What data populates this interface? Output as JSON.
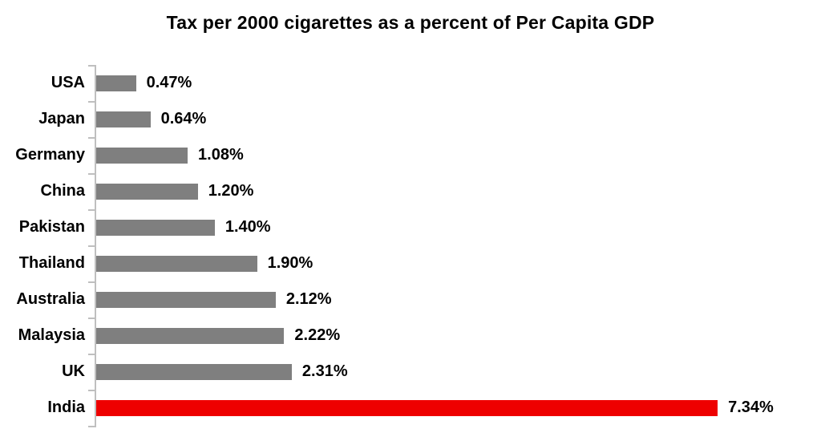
{
  "title": "Tax per 2000 cigarettes as a percent of Per Capita GDP",
  "chart_data": {
    "type": "bar",
    "orientation": "horizontal",
    "title": "Tax per 2000 cigarettes as a percent of Per Capita GDP",
    "categories": [
      "USA",
      "Japan",
      "Germany",
      "China",
      "Pakistan",
      "Thailand",
      "Australia",
      "Malaysia",
      "UK",
      "India"
    ],
    "values": [
      0.47,
      0.64,
      1.08,
      1.2,
      1.4,
      1.9,
      2.12,
      2.22,
      2.31,
      7.34
    ],
    "value_labels": [
      "0.47%",
      "0.64%",
      "1.08%",
      "1.20%",
      "1.40%",
      "1.90%",
      "2.12%",
      "2.22%",
      "2.31%",
      "7.34%"
    ],
    "xlabel": "",
    "ylabel": "",
    "xlim": [
      0,
      8.5
    ],
    "grid": false,
    "legend": false,
    "bar_color": "#7f7f7f",
    "highlight_category": "India",
    "highlight_index": 9,
    "highlight_color": "#ee0000",
    "axis_color": "#bfbfbf",
    "label_color": "#000000"
  }
}
